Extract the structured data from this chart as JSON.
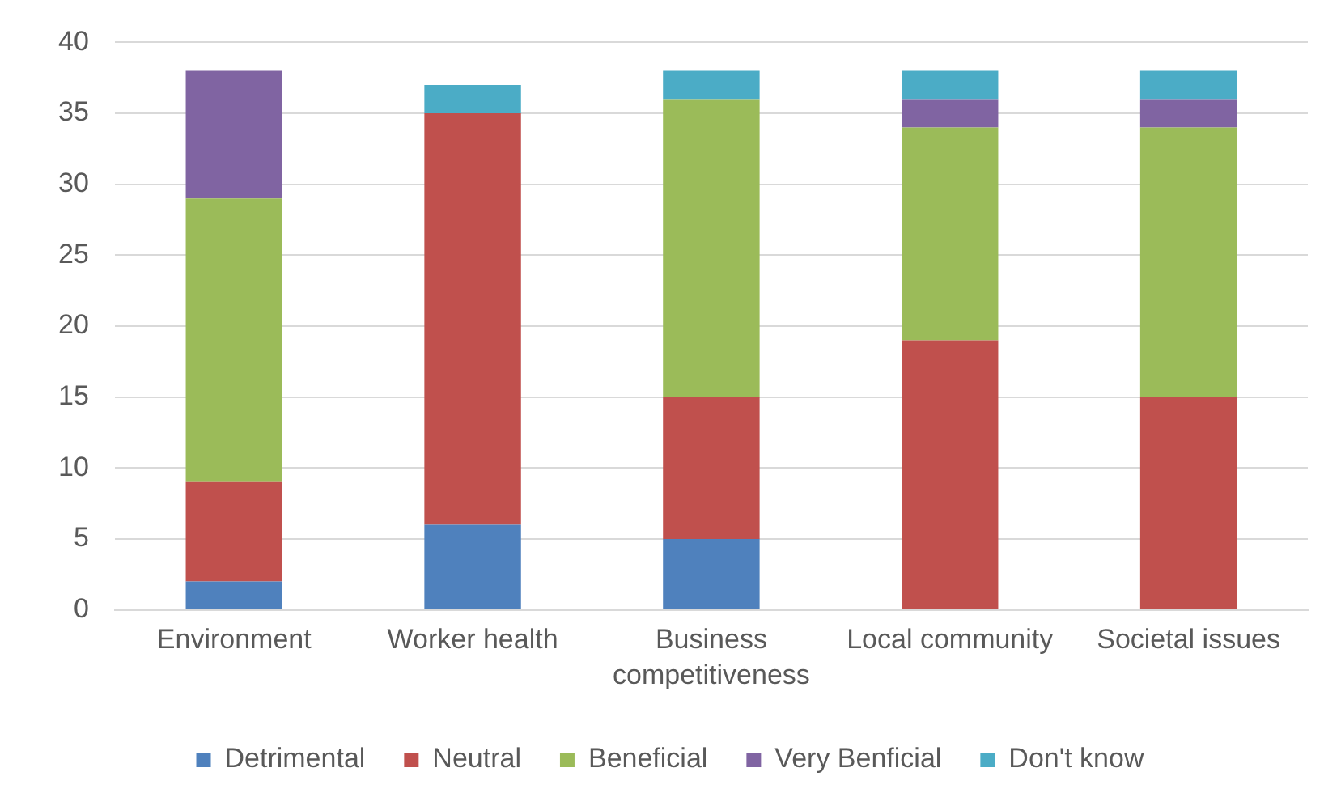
{
  "chart_data": {
    "type": "bar",
    "stacked": true,
    "categories": [
      "Environment",
      "Worker health",
      "Business competitiveness",
      "Local community",
      "Societal issues"
    ],
    "series": [
      {
        "name": "Detrimental",
        "color": "#4f81bd",
        "values": [
          2,
          6,
          5,
          0,
          0
        ]
      },
      {
        "name": "Neutral",
        "color": "#c0504d",
        "values": [
          7,
          29,
          10,
          19,
          15
        ]
      },
      {
        "name": "Beneficial",
        "color": "#9bbb59",
        "values": [
          20,
          0,
          21,
          15,
          19
        ]
      },
      {
        "name": "Very Benficial",
        "color": "#8064a2",
        "values": [
          9,
          0,
          0,
          2,
          2
        ]
      },
      {
        "name": "Don't know",
        "color": "#4bacc6",
        "values": [
          0,
          2,
          2,
          2,
          2
        ]
      }
    ],
    "ylim": [
      0,
      40
    ],
    "yticks": [
      0,
      5,
      10,
      15,
      20,
      25,
      30,
      35,
      40
    ],
    "grid": "y",
    "legend": "bottom"
  }
}
